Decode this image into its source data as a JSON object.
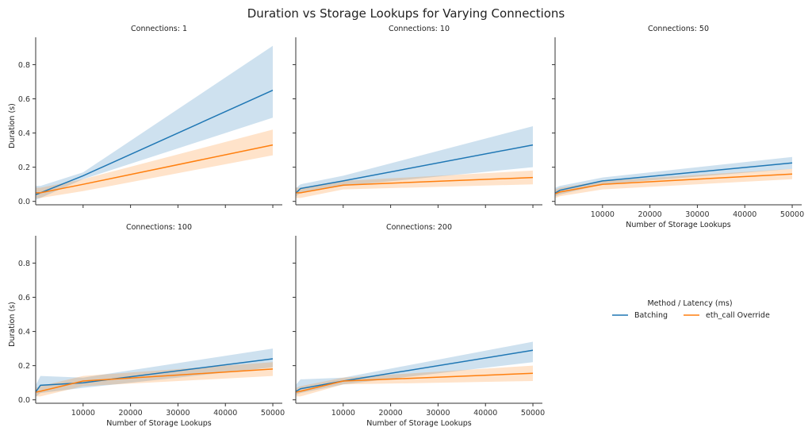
{
  "chart_data": {
    "type": "line",
    "title": "Duration vs Storage Lookups for Varying Connections",
    "xlabel": "Number of Storage Lookups",
    "ylabel": "Duration (s)",
    "xlim": [
      0,
      52000
    ],
    "ylim": [
      -0.02,
      0.96
    ],
    "x_ticks": [
      10000,
      20000,
      30000,
      40000,
      50000
    ],
    "x_tick_labels": [
      "10000",
      "20000",
      "30000",
      "40000",
      "50000"
    ],
    "y_ticks": [
      0.0,
      0.2,
      0.4,
      0.6,
      0.8
    ],
    "y_tick_labels": [
      "0.0",
      "0.2",
      "0.4",
      "0.6",
      "0.8"
    ],
    "grid": false,
    "legend": {
      "title": "Method / Latency (ms)",
      "placement": "right-bottom",
      "entries": [
        {
          "name": "Batching",
          "color": "#1f77b4"
        },
        {
          "name": "eth_call Override",
          "color": "#ff7f0e"
        }
      ]
    },
    "x": [
      100,
      1000,
      10000,
      50000
    ],
    "panels": [
      {
        "title": "Connections: 1",
        "series": [
          {
            "name": "Batching",
            "values": [
              0.04,
              0.05,
              0.15,
              0.65
            ],
            "ci_low": [
              0.01,
              0.02,
              0.13,
              0.49
            ],
            "ci_high": [
              0.09,
              0.09,
              0.17,
              0.91
            ]
          },
          {
            "name": "eth_call Override",
            "values": [
              0.05,
              0.05,
              0.1,
              0.33
            ],
            "ci_low": [
              0.02,
              0.02,
              0.06,
              0.27
            ],
            "ci_high": [
              0.08,
              0.08,
              0.13,
              0.42
            ]
          }
        ]
      },
      {
        "title": "Connections: 10",
        "series": [
          {
            "name": "Batching",
            "values": [
              0.05,
              0.075,
              0.12,
              0.33
            ],
            "ci_low": [
              0.03,
              0.05,
              0.09,
              0.2
            ],
            "ci_high": [
              0.08,
              0.1,
              0.15,
              0.44
            ]
          },
          {
            "name": "eth_call Override",
            "values": [
              0.05,
              0.05,
              0.095,
              0.14
            ],
            "ci_low": [
              0.02,
              0.02,
              0.07,
              0.1
            ],
            "ci_high": [
              0.08,
              0.08,
              0.12,
              0.18
            ]
          }
        ]
      },
      {
        "title": "Connections: 50",
        "series": [
          {
            "name": "Batching",
            "values": [
              0.05,
              0.065,
              0.12,
              0.225
            ],
            "ci_low": [
              0.03,
              0.04,
              0.1,
              0.19
            ],
            "ci_high": [
              0.08,
              0.09,
              0.14,
              0.26
            ]
          },
          {
            "name": "eth_call Override",
            "values": [
              0.045,
              0.055,
              0.1,
              0.16
            ],
            "ci_low": [
              0.02,
              0.03,
              0.07,
              0.13
            ],
            "ci_high": [
              0.07,
              0.08,
              0.12,
              0.19
            ]
          }
        ]
      },
      {
        "title": "Connections: 100",
        "series": [
          {
            "name": "Batching",
            "values": [
              0.05,
              0.085,
              0.1,
              0.24
            ],
            "ci_low": [
              0.02,
              0.04,
              0.07,
              0.19
            ],
            "ci_high": [
              0.09,
              0.14,
              0.13,
              0.3
            ]
          },
          {
            "name": "eth_call Override",
            "values": [
              0.045,
              0.05,
              0.11,
              0.18
            ],
            "ci_low": [
              0.02,
              0.02,
              0.08,
              0.14
            ],
            "ci_high": [
              0.07,
              0.08,
              0.14,
              0.22
            ]
          }
        ]
      },
      {
        "title": "Connections: 200",
        "series": [
          {
            "name": "Batching",
            "values": [
              0.05,
              0.065,
              0.11,
              0.29
            ],
            "ci_low": [
              0.03,
              0.04,
              0.09,
              0.22
            ],
            "ci_high": [
              0.09,
              0.12,
              0.13,
              0.34
            ]
          },
          {
            "name": "eth_call Override",
            "values": [
              0.045,
              0.05,
              0.11,
              0.155
            ],
            "ci_low": [
              0.02,
              0.02,
              0.09,
              0.11
            ],
            "ci_high": [
              0.07,
              0.08,
              0.13,
              0.2
            ]
          }
        ]
      }
    ]
  }
}
